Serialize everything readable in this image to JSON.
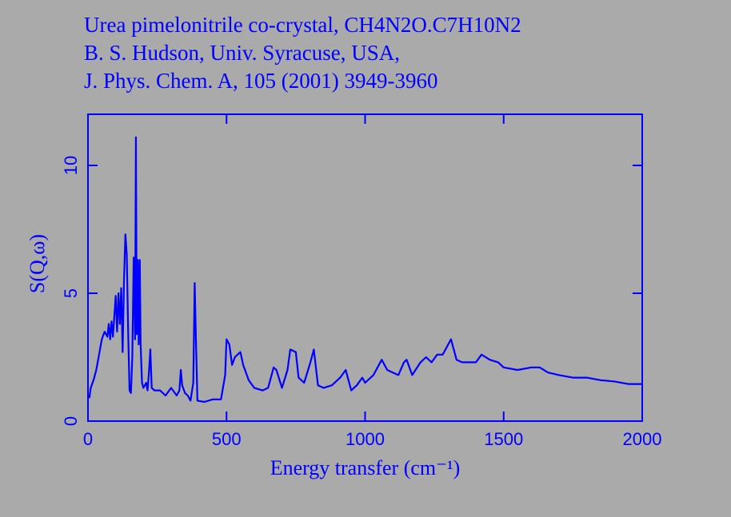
{
  "chart_data": {
    "type": "line",
    "title": [
      "Urea pimelonitrile co-crystal,  CH4N2O.C7H10N2",
      "B. S. Hudson, Univ. Syracuse, USA,",
      "J. Phys. Chem. A, 105 (2001) 3949-3960"
    ],
    "x_label": "Energy transfer (cm⁻¹)",
    "y_label": "S(Q,ω)",
    "xlim": [
      0,
      2000
    ],
    "ylim": [
      0,
      12
    ],
    "xticks": [
      0,
      500,
      1000,
      1500,
      2000
    ],
    "yticks": [
      0,
      5,
      10
    ],
    "grid": false,
    "x": [
      5,
      10,
      20,
      30,
      40,
      50,
      60,
      70,
      75,
      80,
      85,
      90,
      100,
      105,
      110,
      115,
      120,
      125,
      130,
      135,
      140,
      145,
      150,
      155,
      160,
      165,
      170,
      173,
      176,
      180,
      183,
      187,
      190,
      195,
      200,
      210,
      215,
      220,
      225,
      230,
      240,
      260,
      280,
      300,
      320,
      330,
      335,
      340,
      350,
      360,
      370,
      380,
      385,
      390,
      395,
      420,
      450,
      480,
      495,
      500,
      510,
      520,
      530,
      550,
      560,
      580,
      600,
      630,
      650,
      670,
      680,
      700,
      720,
      730,
      750,
      760,
      780,
      800,
      815,
      830,
      850,
      880,
      910,
      930,
      950,
      970,
      990,
      1000,
      1030,
      1060,
      1080,
      1100,
      1120,
      1140,
      1150,
      1170,
      1200,
      1220,
      1240,
      1260,
      1280,
      1300,
      1310,
      1330,
      1350,
      1400,
      1420,
      1450,
      1480,
      1500,
      1550,
      1600,
      1630,
      1660,
      1700,
      1750,
      1800,
      1850,
      1900,
      1950,
      2000
    ],
    "series": [
      {
        "color": "#0000ff",
        "values": [
          0.9,
          1.3,
          1.6,
          2.0,
          2.6,
          3.2,
          3.5,
          3.3,
          3.8,
          3.2,
          3.9,
          3.3,
          4.9,
          3.5,
          5.0,
          3.8,
          5.2,
          2.7,
          5.5,
          7.3,
          6.5,
          3.5,
          1.2,
          1.1,
          2.5,
          6.4,
          3.2,
          11.1,
          3.4,
          6.3,
          3.0,
          6.3,
          3.0,
          1.5,
          1.3,
          1.5,
          1.2,
          1.9,
          2.8,
          1.3,
          1.2,
          1.2,
          1.0,
          1.3,
          1.0,
          1.2,
          2.0,
          1.4,
          1.1,
          1.0,
          0.8,
          1.5,
          5.4,
          3.0,
          0.8,
          0.75,
          0.85,
          0.85,
          1.8,
          3.2,
          3.0,
          2.2,
          2.5,
          2.7,
          2.2,
          1.6,
          1.3,
          1.2,
          1.3,
          2.1,
          2.0,
          1.3,
          2.0,
          2.8,
          2.7,
          1.7,
          1.5,
          2.2,
          2.8,
          1.4,
          1.3,
          1.4,
          1.7,
          2.0,
          1.2,
          1.4,
          1.7,
          1.5,
          1.8,
          2.4,
          2.0,
          1.9,
          1.8,
          2.3,
          2.4,
          1.8,
          2.3,
          2.5,
          2.3,
          2.6,
          2.6,
          3.0,
          3.2,
          2.4,
          2.3,
          2.3,
          2.6,
          2.4,
          2.3,
          2.1,
          2.0,
          2.1,
          2.1,
          1.9,
          1.8,
          1.7,
          1.7,
          1.6,
          1.55,
          1.45,
          1.45
        ]
      }
    ]
  }
}
